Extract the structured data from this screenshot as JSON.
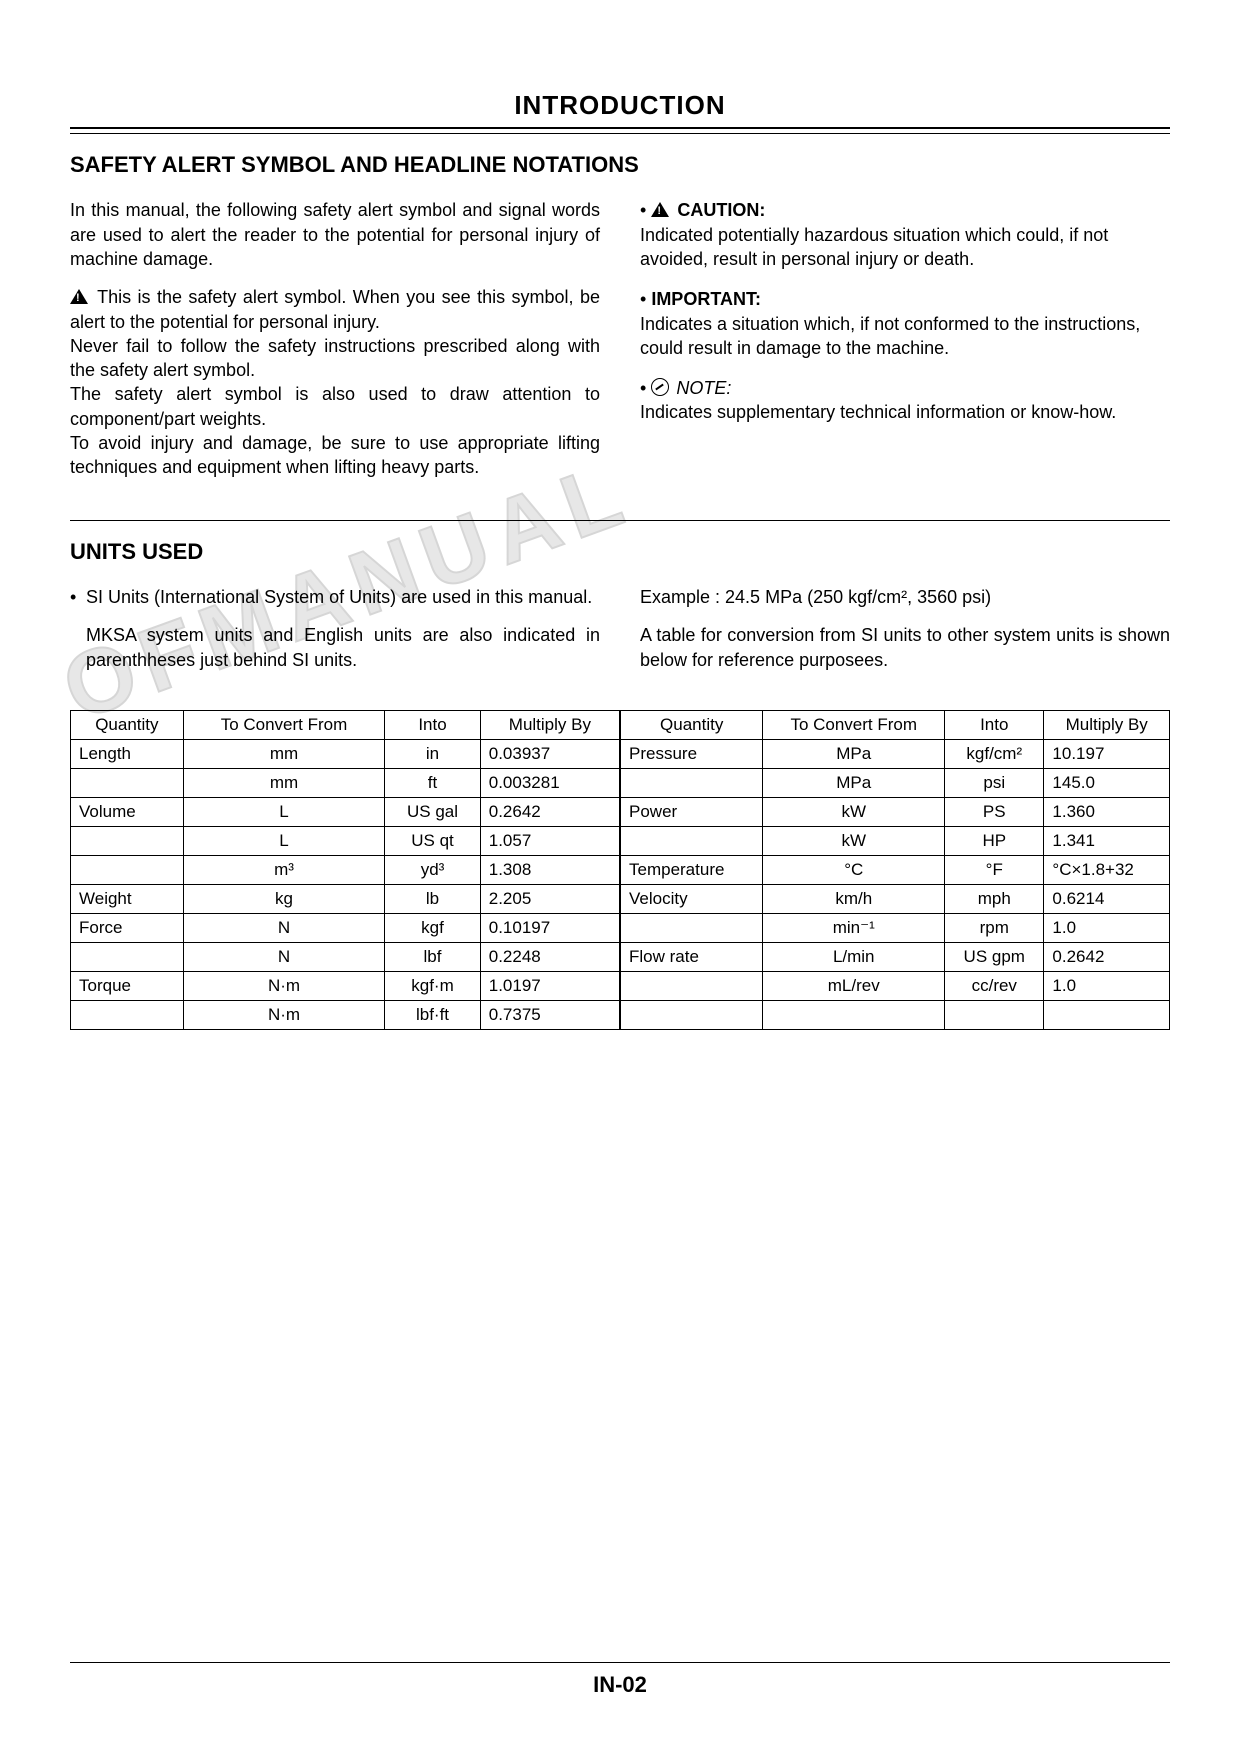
{
  "page": {
    "title": "INTRODUCTION",
    "number": "IN-02",
    "watermark": "OFMANUAL"
  },
  "safety": {
    "heading": "SAFETY ALERT SYMBOL AND HEADLINE NOTATIONS",
    "intro": "In this manual, the following safety alert symbol and signal words are used to alert the reader to the potential for personal injury of machine damage.",
    "alert1": "This is the safety alert symbol. When you see this symbol, be alert to the potential for personal injury.",
    "alert2": "Never fail to follow the safety instructions prescribed along with the safety alert symbol.",
    "alert3": "The safety alert symbol is also used to draw attention to component/part weights.",
    "alert4": "To avoid injury and damage, be sure to use appropriate lifting techniques and equipment when lifting heavy parts.",
    "caution_label": "CAUTION:",
    "caution_body": "Indicated potentially hazardous situation which could, if not avoided, result in personal injury or death.",
    "important_label": "IMPORTANT:",
    "important_body": "Indicates a situation which, if not conformed to the instructions, could result in damage to the machine.",
    "note_label": "NOTE:",
    "note_body": "Indicates supplementary technical information or know-how."
  },
  "units": {
    "heading": "UNITS USED",
    "p1": "SI Units (International System of Units) are used in this manual.",
    "p2": "MKSA system units and English units are also indicated in parenthheses just behind SI units.",
    "example": "Example : 24.5 MPa (250 kgf/cm², 3560 psi)",
    "p3": "A table for conversion from SI units to other system units is shown below for reference purposees."
  },
  "table": {
    "headers": {
      "quantity": "Quantity",
      "from": "To Convert From",
      "into": "Into",
      "mult": "Multiply By"
    },
    "left": [
      {
        "q": "Length",
        "from": "mm",
        "into": "in",
        "mult": "0.03937"
      },
      {
        "q": "",
        "from": "mm",
        "into": "ft",
        "mult": "0.003281"
      },
      {
        "q": "Volume",
        "from": "L",
        "into": "US gal",
        "mult": "0.2642"
      },
      {
        "q": "",
        "from": "L",
        "into": "US qt",
        "mult": "1.057"
      },
      {
        "q": "",
        "from": "m³",
        "into": "yd³",
        "mult": "1.308"
      },
      {
        "q": "Weight",
        "from": "kg",
        "into": "lb",
        "mult": "2.205"
      },
      {
        "q": "Force",
        "from": "N",
        "into": "kgf",
        "mult": "0.10197"
      },
      {
        "q": "",
        "from": "N",
        "into": "lbf",
        "mult": "0.2248"
      },
      {
        "q": "Torque",
        "from": "N·m",
        "into": "kgf·m",
        "mult": "1.0197"
      },
      {
        "q": "",
        "from": "N·m",
        "into": "lbf·ft",
        "mult": "0.7375"
      }
    ],
    "right": [
      {
        "q": "Pressure",
        "from": "MPa",
        "into": "kgf/cm²",
        "mult": "10.197"
      },
      {
        "q": "",
        "from": "MPa",
        "into": "psi",
        "mult": "145.0"
      },
      {
        "q": "Power",
        "from": "kW",
        "into": "PS",
        "mult": "1.360"
      },
      {
        "q": "",
        "from": "kW",
        "into": "HP",
        "mult": "1.341"
      },
      {
        "q": "Temperature",
        "from": "°C",
        "into": "°F",
        "mult": "°C×1.8+32"
      },
      {
        "q": "Velocity",
        "from": "km/h",
        "into": "mph",
        "mult": "0.6214"
      },
      {
        "q": "",
        "from": "min⁻¹",
        "into": "rpm",
        "mult": "1.0"
      },
      {
        "q": "Flow rate",
        "from": "L/min",
        "into": "US gpm",
        "mult": "0.2642"
      },
      {
        "q": "",
        "from": "mL/rev",
        "into": "cc/rev",
        "mult": "1.0"
      },
      {
        "q": "",
        "from": "",
        "into": "",
        "mult": ""
      }
    ]
  }
}
